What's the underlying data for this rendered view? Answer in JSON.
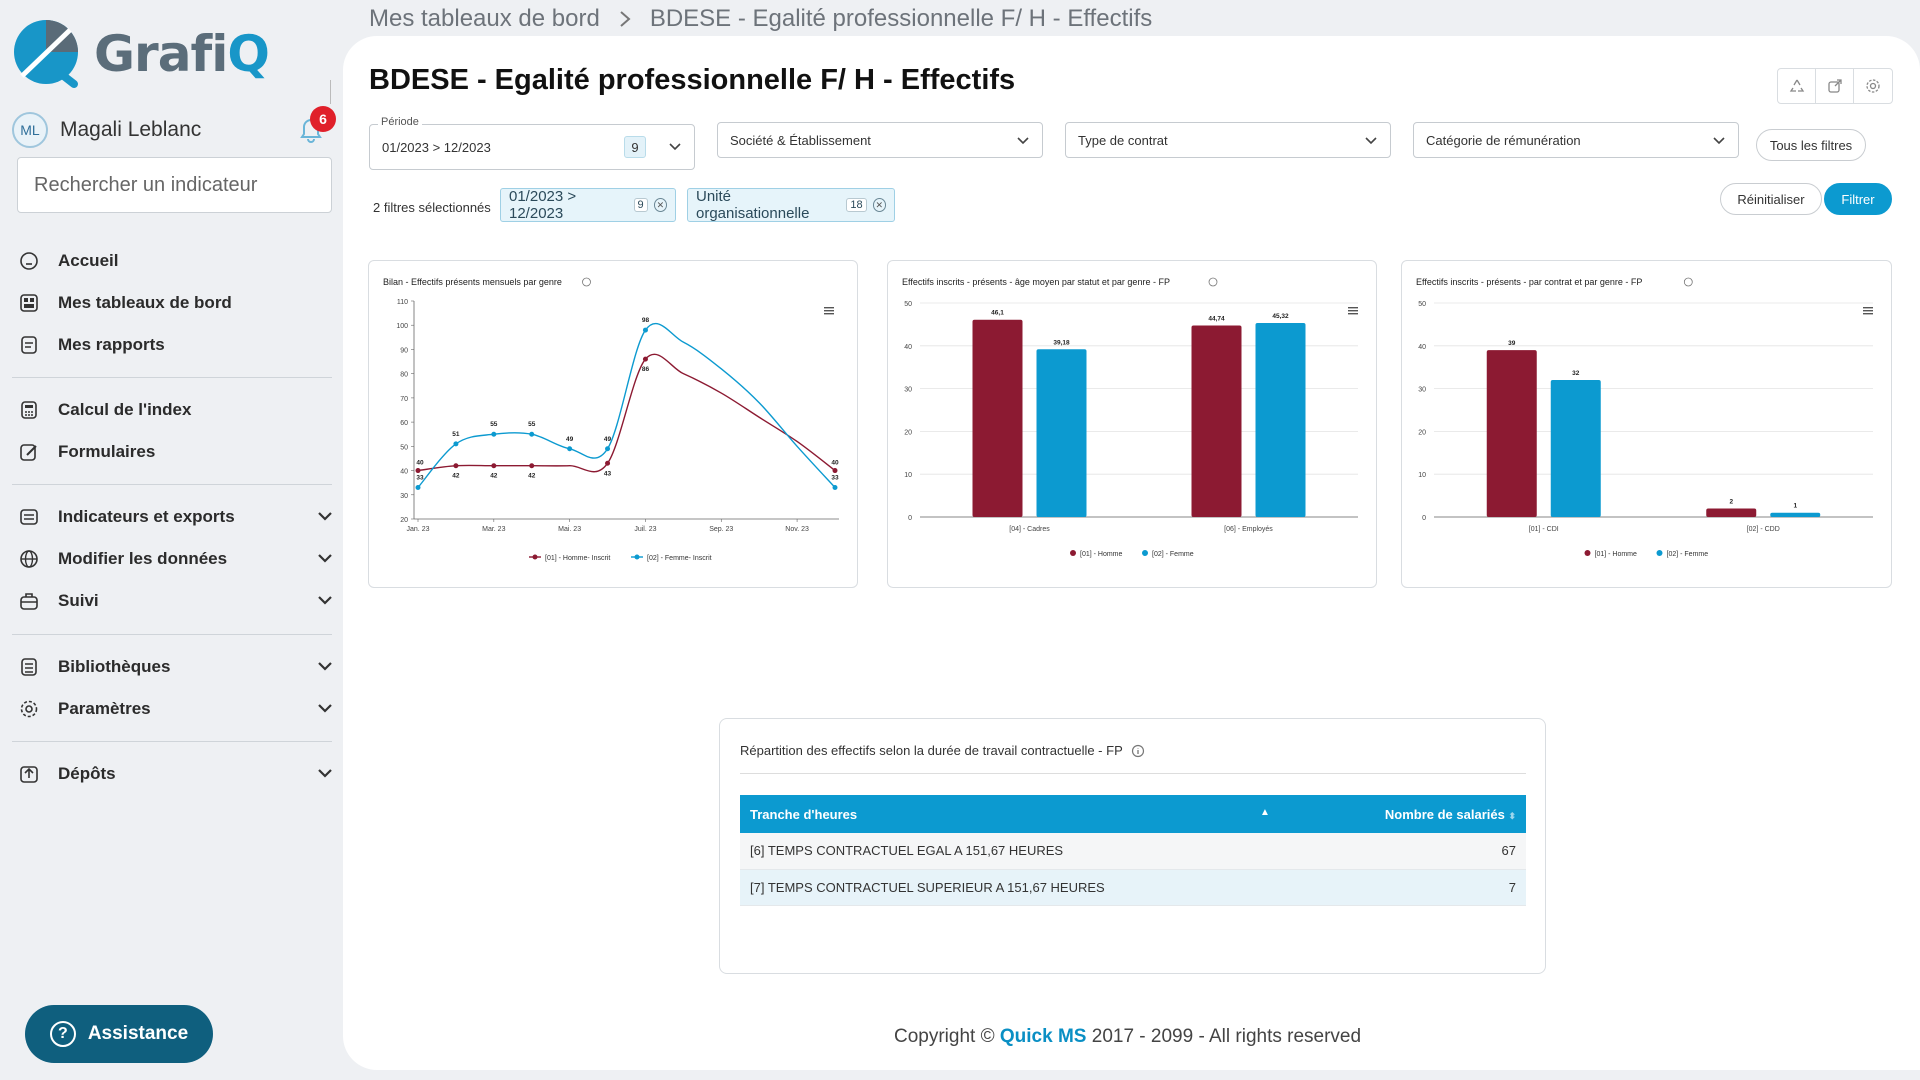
{
  "app": {
    "logo_text_main": "Grafi",
    "logo_text_q": "Q"
  },
  "user": {
    "initials": "ML",
    "name": "Magali Leblanc",
    "notifications": "6"
  },
  "search": {
    "placeholder": "Rechercher un indicateur"
  },
  "nav": {
    "accueil": "Accueil",
    "tableaux": "Mes tableaux de bord",
    "rapports": "Mes rapports",
    "index": "Calcul de l'index",
    "formulaires": "Formulaires",
    "indicateurs": "Indicateurs et exports",
    "modifier": "Modifier les données",
    "suivi": "Suivi",
    "bibliotheques": "Bibliothèques",
    "parametres": "Paramètres",
    "depots": "Dépôts"
  },
  "assist": {
    "label": "Assistance"
  },
  "breadcrumb": {
    "root": "Mes tableaux de bord",
    "current": "BDESE - Egalité professionnelle F/ H - Effectifs"
  },
  "page": {
    "title": "BDESE - Egalité professionnelle F/ H - Effectifs"
  },
  "filters": {
    "periode_label": "Période",
    "periode_value": "01/2023 > 12/2023",
    "periode_count": "9",
    "societe": "Société & Établissement",
    "contrat": "Type de contrat",
    "remuneration": "Catégorie de rémunération",
    "tous": "Tous les filtres",
    "selected_count": "2 filtres sélectionnés",
    "chip1_label": "01/2023 > 12/2023",
    "chip1_count": "9",
    "chip2_label": "Unité organisationnelle",
    "chip2_count": "18",
    "reset": "Réinitialiser",
    "apply": "Filtrer"
  },
  "chart_data": [
    {
      "type": "line",
      "title": "Bilan - Effectifs présents mensuels par genre",
      "x": [
        "Jan. 23",
        "Feb. 23",
        "Mar. 23",
        "Apr. 23",
        "May 23",
        "Jun. 23",
        "Jul. 23",
        "Aug. 23",
        "Sep. 23",
        "Oct. 23",
        "Nov. 23",
        "Dec. 23"
      ],
      "x_tick_labels": [
        "Jan. 23",
        "Mar. 23",
        "Mai. 23",
        "Juil. 23",
        "Sep. 23",
        "Nov. 23"
      ],
      "series": [
        {
          "name": "[01] - Homme- Inscrit",
          "color": "#8c1a32",
          "values": [
            40,
            42,
            42,
            42,
            42,
            43,
            86,
            80,
            72,
            62,
            52,
            40
          ]
        },
        {
          "name": "[02] - Femme- Inscrit",
          "color": "#0c9ad0",
          "values": [
            33,
            51,
            55,
            55,
            49,
            49,
            98,
            93,
            82,
            68,
            50,
            33
          ]
        }
      ],
      "labeled_points": {
        "[01] - Homme- Inscrit": [
          40,
          42,
          42,
          42,
          null,
          43,
          86,
          null,
          null,
          null,
          null,
          40
        ],
        "[02] - Femme- Inscrit": [
          33,
          51,
          55,
          55,
          49,
          49,
          98,
          null,
          null,
          null,
          null,
          33
        ]
      },
      "ylim": [
        20,
        110
      ],
      "yticks": [
        20,
        30,
        40,
        50,
        60,
        70,
        80,
        90,
        100,
        110
      ],
      "legend": "bottom",
      "grid": false
    },
    {
      "type": "bar",
      "title": "Effectifs inscrits - présents - âge moyen par statut et par genre - FP",
      "categories": [
        "[04] - Cadres",
        "[06] - Employés"
      ],
      "series": [
        {
          "name": "[01] - Homme",
          "color": "#8c1a32",
          "values": [
            46.1,
            44.74
          ]
        },
        {
          "name": "[02] - Femme",
          "color": "#0c9ad0",
          "values": [
            39.18,
            45.32
          ]
        }
      ],
      "data_labels": [
        "46,1",
        "39,18",
        "44,74",
        "45,32"
      ],
      "ylim": [
        0,
        50
      ],
      "yticks": [
        0,
        10,
        20,
        30,
        40,
        50
      ],
      "legend": "bottom",
      "grid": true
    },
    {
      "type": "bar",
      "title": "Effectifs inscrits - présents - par contrat et par genre - FP",
      "categories": [
        "[01] - CDI",
        "[02] - CDD"
      ],
      "series": [
        {
          "name": "[01] - Homme",
          "color": "#8c1a32",
          "values": [
            39,
            2
          ]
        },
        {
          "name": "[02] - Femme",
          "color": "#0c9ad0",
          "values": [
            32,
            1
          ]
        }
      ],
      "ylim": [
        0,
        50
      ],
      "yticks": [
        0,
        10,
        20,
        30,
        40,
        50
      ],
      "legend": "bottom",
      "grid": true
    }
  ],
  "table": {
    "title": "Répartition des effectifs selon la durée de travail contractuelle - FP",
    "col1": "Tranche d'heures",
    "col2": "Nombre de salariés",
    "rows": [
      {
        "label": "[6] TEMPS CONTRACTUEL EGAL A 151,67 HEURES",
        "value": "67"
      },
      {
        "label": "[7] TEMPS CONTRACTUEL SUPERIEUR A 151,67 HEURES",
        "value": "7"
      }
    ]
  },
  "footer": {
    "prefix": "Copyright ©",
    "brand": "Quick MS",
    "suffix": "2017 - 2099 - All rights reserved"
  }
}
